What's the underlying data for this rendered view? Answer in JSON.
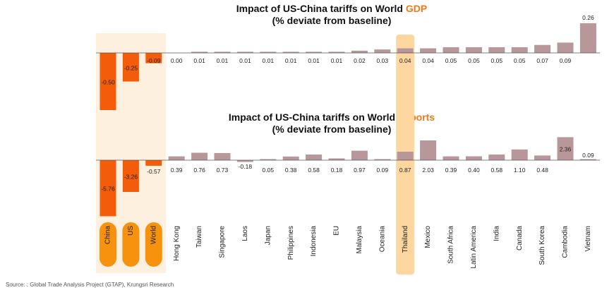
{
  "titles": {
    "gdp_line1_prefix": "Impact of US-China tariffs on World ",
    "gdp_line1_highlight": "GDP",
    "gdp_line2": "(% deviate from baseline)",
    "exports_line1_prefix": "Impact of US-China tariffs on World ",
    "exports_line1_highlight": "Exports",
    "exports_line2": "(% deviate from baseline)"
  },
  "source": "Source: : Global Trade Analysis Project (GTAP), Krungsri Research",
  "colors": {
    "highlight_bar": "#f25c0a",
    "other_bar": "#b8979a",
    "highlight_panel": "#fdf0de",
    "thailand_panel": "#fdd6a0",
    "pill": "#f7920f",
    "title_accent": "#f07a1a"
  },
  "chart_data": [
    {
      "type": "bar",
      "title": "Impact of US-China tariffs on World GDP",
      "subtitle": "(% deviate from baseline)",
      "categories": [
        "China",
        "US",
        "World",
        "Hong Kong",
        "Taiwan",
        "Singapore",
        "Laos",
        "Japan",
        "Philippines",
        "Indonesia",
        "EU",
        "Malaysia",
        "Oceania",
        "Thailand",
        "Mexico",
        "South Africa",
        "Latin America",
        "India",
        "Canada",
        "South Korea",
        "Cambodia",
        "Vietnam"
      ],
      "values": [
        -0.5,
        -0.25,
        -0.09,
        0.0,
        0.01,
        0.01,
        0.01,
        0.01,
        0.01,
        0.01,
        0.01,
        0.02,
        0.03,
        0.04,
        0.04,
        0.05,
        0.05,
        0.05,
        0.05,
        0.07,
        0.09,
        0.26
      ],
      "labels": [
        "-0.50",
        "-0.25",
        "-0.09",
        "0.00",
        "0.01",
        "0.01",
        "0.01",
        "0.01",
        "0.01",
        "0.01",
        "0.01",
        "0.02",
        "0.03",
        "0.04",
        "0.04",
        "0.05",
        "0.05",
        "0.05",
        "0.05",
        "0.07",
        "0.09",
        "0.26"
      ],
      "highlighted": [
        "China",
        "US",
        "World"
      ]
    },
    {
      "type": "bar",
      "title": "Impact of US-China tariffs on World Exports",
      "subtitle": "(% deviate from baseline)",
      "categories": [
        "China",
        "US",
        "World",
        "Hong Kong",
        "Taiwan",
        "Singapore",
        "Laos",
        "Japan",
        "Philippines",
        "Indonesia",
        "EU",
        "Malaysia",
        "Oceania",
        "Thailand",
        "Mexico",
        "South Africa",
        "Latin America",
        "India",
        "Canada",
        "South Korea",
        "Cambodia",
        "Vietnam"
      ],
      "values": [
        -5.76,
        -3.26,
        -0.57,
        0.39,
        0.76,
        0.73,
        -0.18,
        0.05,
        0.38,
        0.58,
        0.18,
        0.97,
        0.09,
        0.87,
        2.03,
        0.39,
        0.4,
        0.58,
        1.1,
        0.48,
        2.36,
        0.09
      ],
      "labels": [
        "-5.76",
        "-3.26",
        "-0.57",
        "0.39",
        "0.76",
        "0.73",
        "-0.18",
        "0.05",
        "0.38",
        "0.58",
        "0.18",
        "0.97",
        "0.09",
        "0.87",
        "2.03",
        "0.39",
        "0.40",
        "0.58",
        "1.10",
        "0.48",
        "2.36",
        "0.09"
      ],
      "highlighted": [
        "China",
        "US",
        "World"
      ]
    }
  ]
}
